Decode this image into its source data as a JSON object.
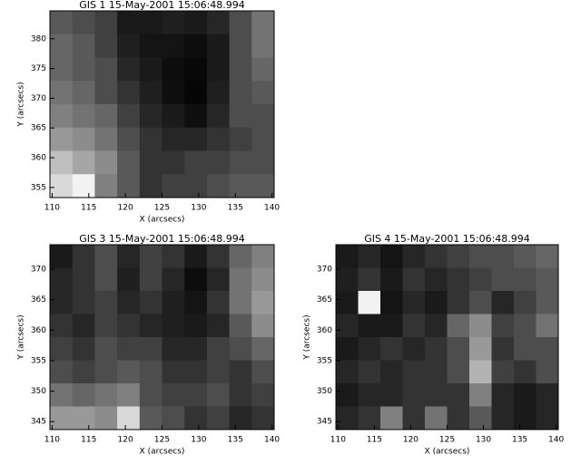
{
  "chart_data": [
    {
      "type": "heatmap",
      "title": "GIS 1 15-May-2001 15:06:48.994",
      "x_label": "X (arcsecs)",
      "y_label": "Y (arcsecs)",
      "xlim": [
        109.7,
        140.3
      ],
      "ylim": [
        353.3,
        384.7
      ],
      "xticks": [
        110,
        115,
        120,
        125,
        130,
        135,
        140
      ],
      "yticks": [
        380,
        375,
        370,
        365,
        360,
        355
      ],
      "values": [
        [
          0.35,
          0.3,
          0.25,
          0.1,
          0.1,
          0.12,
          0.1,
          0.15,
          0.3,
          0.45
        ],
        [
          0.4,
          0.35,
          0.25,
          0.12,
          0.08,
          0.08,
          0.05,
          0.1,
          0.3,
          0.45
        ],
        [
          0.4,
          0.35,
          0.3,
          0.15,
          0.1,
          0.05,
          0.03,
          0.1,
          0.3,
          0.4
        ],
        [
          0.45,
          0.4,
          0.3,
          0.2,
          0.12,
          0.06,
          0.02,
          0.12,
          0.3,
          0.35
        ],
        [
          0.5,
          0.45,
          0.4,
          0.25,
          0.15,
          0.1,
          0.06,
          0.15,
          0.3,
          0.3
        ],
        [
          0.6,
          0.55,
          0.45,
          0.3,
          0.2,
          0.15,
          0.15,
          0.2,
          0.25,
          0.3
        ],
        [
          0.75,
          0.65,
          0.55,
          0.35,
          0.2,
          0.2,
          0.25,
          0.25,
          0.3,
          0.3
        ],
        [
          0.85,
          0.95,
          0.5,
          0.35,
          0.2,
          0.25,
          0.25,
          0.3,
          0.35,
          0.35
        ]
      ]
    },
    {
      "type": "heatmap",
      "title": "GIS 3 15-May-2001 15:06:48.994",
      "x_label": "X (arcsecs)",
      "y_label": "Y (arcsecs)",
      "xlim": [
        109.7,
        140.3
      ],
      "ylim": [
        343.7,
        374
      ],
      "xticks": [
        110,
        115,
        120,
        125,
        130,
        135,
        140
      ],
      "yticks": [
        370,
        365,
        360,
        355,
        350,
        345
      ],
      "values": [
        [
          0.1,
          0.2,
          0.3,
          0.15,
          0.25,
          0.2,
          0.1,
          0.2,
          0.4,
          0.5
        ],
        [
          0.15,
          0.2,
          0.3,
          0.12,
          0.25,
          0.15,
          0.05,
          0.15,
          0.45,
          0.55
        ],
        [
          0.15,
          0.2,
          0.25,
          0.15,
          0.2,
          0.12,
          0.08,
          0.2,
          0.45,
          0.6
        ],
        [
          0.2,
          0.15,
          0.25,
          0.2,
          0.15,
          0.12,
          0.1,
          0.15,
          0.35,
          0.55
        ],
        [
          0.25,
          0.2,
          0.3,
          0.25,
          0.25,
          0.15,
          0.15,
          0.25,
          0.3,
          0.4
        ],
        [
          0.3,
          0.25,
          0.3,
          0.35,
          0.3,
          0.2,
          0.2,
          0.25,
          0.2,
          0.3
        ],
        [
          0.45,
          0.4,
          0.45,
          0.5,
          0.3,
          0.25,
          0.25,
          0.3,
          0.2,
          0.25
        ],
        [
          0.6,
          0.6,
          0.55,
          0.85,
          0.35,
          0.3,
          0.2,
          0.25,
          0.15,
          0.2
        ]
      ]
    },
    {
      "type": "heatmap",
      "title": "GIS 4 15-May-2001 15:06:48.994",
      "x_label": "X (arcsecs)",
      "y_label": "Y (arcsecs)",
      "xlim": [
        109.7,
        140.3
      ],
      "ylim": [
        343.7,
        374
      ],
      "xticks": [
        110,
        115,
        120,
        125,
        130,
        135,
        140
      ],
      "yticks": [
        370,
        365,
        360,
        355,
        350,
        345
      ],
      "values": [
        [
          0.1,
          0.15,
          0.08,
          0.15,
          0.2,
          0.25,
          0.3,
          0.3,
          0.35,
          0.4
        ],
        [
          0.12,
          0.2,
          0.1,
          0.2,
          0.15,
          0.2,
          0.25,
          0.3,
          0.3,
          0.35
        ],
        [
          0.1,
          0.95,
          0.08,
          0.15,
          0.1,
          0.2,
          0.3,
          0.15,
          0.25,
          0.35
        ],
        [
          0.15,
          0.1,
          0.1,
          0.2,
          0.15,
          0.4,
          0.55,
          0.25,
          0.3,
          0.45
        ],
        [
          0.1,
          0.15,
          0.2,
          0.15,
          0.2,
          0.3,
          0.6,
          0.2,
          0.3,
          0.3
        ],
        [
          0.15,
          0.2,
          0.15,
          0.2,
          0.2,
          0.3,
          0.7,
          0.25,
          0.2,
          0.3
        ],
        [
          0.1,
          0.15,
          0.15,
          0.2,
          0.2,
          0.2,
          0.5,
          0.15,
          0.1,
          0.15
        ],
        [
          0.15,
          0.2,
          0.5,
          0.2,
          0.45,
          0.2,
          0.35,
          0.15,
          0.1,
          0.15
        ]
      ]
    }
  ]
}
